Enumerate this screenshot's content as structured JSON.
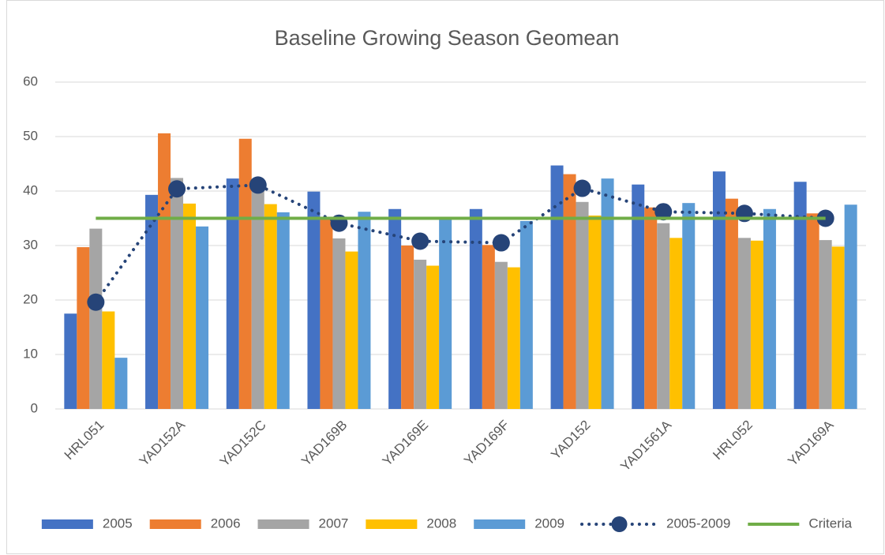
{
  "chart_data": {
    "type": "bar",
    "title": "Baseline Growing Season Geomean",
    "categories": [
      "HRL051",
      "YAD152A",
      "YAD152C",
      "YAD169B",
      "YAD169E",
      "YAD169F",
      "YAD152",
      "YAD1561A",
      "HRL052",
      "YAD169A"
    ],
    "series": [
      {
        "name": "2005",
        "color": "#4472c4",
        "values": [
          17.5,
          39.3,
          42.3,
          39.9,
          36.7,
          36.7,
          44.7,
          41.2,
          43.6,
          41.7
        ]
      },
      {
        "name": "2006",
        "color": "#ed7d31",
        "values": [
          29.7,
          50.6,
          49.6,
          35.0,
          30.0,
          30.1,
          43.1,
          37.0,
          38.6,
          35.9
        ]
      },
      {
        "name": "2007",
        "color": "#a5a5a5",
        "values": [
          33.1,
          42.4,
          40.5,
          31.3,
          27.4,
          27.0,
          38.0,
          34.1,
          31.4,
          31.0
        ]
      },
      {
        "name": "2008",
        "color": "#ffc000",
        "values": [
          17.9,
          37.7,
          37.6,
          28.9,
          26.3,
          26.0,
          35.5,
          31.4,
          30.9,
          29.8
        ]
      },
      {
        "name": "2009",
        "color": "#5b9bd5",
        "values": [
          9.4,
          33.5,
          36.1,
          36.2,
          35.1,
          34.5,
          42.3,
          37.8,
          36.7,
          37.5
        ]
      },
      {
        "name": "2005-2009",
        "color": "#264478",
        "type": "line",
        "line_style": "dotted",
        "marker": true,
        "values": [
          19.6,
          40.4,
          41.1,
          34.1,
          30.8,
          30.5,
          40.5,
          36.2,
          35.9,
          35.0
        ]
      },
      {
        "name": "Criteria",
        "color": "#70ad47",
        "type": "line",
        "line_style": "solid",
        "marker": false,
        "values": [
          35,
          35,
          35,
          35,
          35,
          35,
          35,
          35,
          35,
          35
        ]
      }
    ],
    "ylim": [
      0,
      60
    ],
    "yticks": [
      0,
      10,
      20,
      30,
      40,
      50,
      60
    ],
    "grid": true,
    "legend": "bottom"
  }
}
